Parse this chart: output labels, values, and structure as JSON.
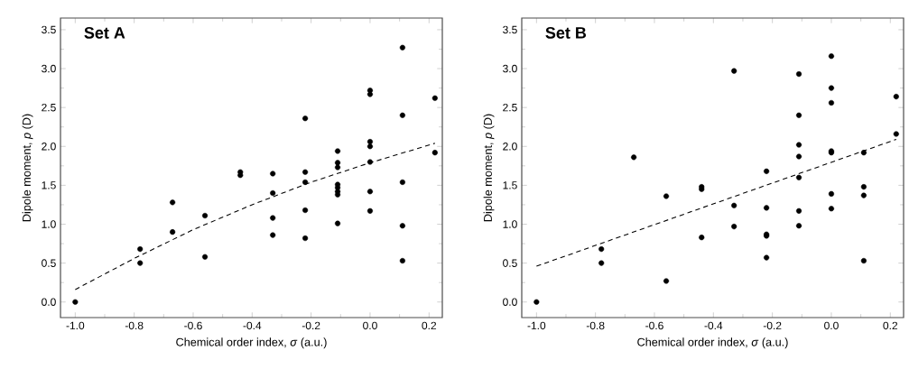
{
  "chart_data": [
    {
      "type": "scatter",
      "title": "Set A",
      "xlabel": "Chemical order index, *σ* (a.u.)",
      "ylabel": "Dipole moment, *p* (D)",
      "xlim": [
        -1.05,
        0.245
      ],
      "ylim": [
        -0.2,
        3.65
      ],
      "xticks": [
        {
          "value": -1,
          "label": "-1.0"
        },
        {
          "value": -0.8,
          "label": "-0.8"
        },
        {
          "value": -0.6,
          "label": "-0.6"
        },
        {
          "value": -0.4,
          "label": "-0.4"
        },
        {
          "value": -0.2,
          "label": "-0.2"
        },
        {
          "value": 0,
          "label": "0.0"
        },
        {
          "value": 0.2,
          "label": "0.2"
        }
      ],
      "yticks": [
        {
          "value": 0,
          "label": "0.0"
        },
        {
          "value": 0.5,
          "label": "0.5"
        },
        {
          "value": 1,
          "label": "1.0"
        },
        {
          "value": 1.5,
          "label": "1.5"
        },
        {
          "value": 2,
          "label": "2.0"
        },
        {
          "value": 2.5,
          "label": "2.5"
        },
        {
          "value": 3,
          "label": "3.0"
        },
        {
          "value": 3.5,
          "label": "3.5"
        }
      ],
      "marker": "circle",
      "grid": false,
      "series": [
        {
          "color": "#000000",
          "x": [
            -1,
            -0.78,
            -0.78,
            -0.67,
            -0.67,
            -0.56,
            -0.56,
            -0.44,
            -0.44,
            -0.33,
            -0.33,
            -0.33,
            -0.33,
            -0.22,
            -0.22,
            -0.22,
            -0.22,
            -0.22,
            -0.11,
            -0.11,
            -0.11,
            -0.11,
            -0.11,
            -0.11,
            -0.11,
            -0.11,
            0,
            0,
            0,
            0,
            0,
            0,
            0,
            0.11,
            0.11,
            0.11,
            0.11,
            0.11,
            0.22,
            0.22
          ],
          "values": [
            0,
            0.68,
            0.5,
            1.28,
            0.9,
            1.11,
            0.58,
            1.67,
            1.63,
            1.65,
            1.4,
            1.08,
            0.86,
            2.36,
            1.67,
            1.54,
            1.18,
            0.82,
            1.94,
            1.79,
            1.73,
            1.51,
            1.47,
            1.42,
            1.38,
            1.01,
            2.72,
            2.67,
            2.06,
            2.0,
            1.8,
            1.42,
            1.17,
            3.27,
            2.4,
            1.54,
            0.98,
            0.53,
            2.62,
            1.92
          ]
        },
        {
          "type": "line",
          "color": "#000000",
          "line_style": "dashed",
          "marker": "none",
          "x": [
            -1,
            -0.8,
            -0.6,
            -0.4,
            -0.2,
            0,
            0.22
          ],
          "values": [
            0.16,
            0.56,
            0.93,
            1.25,
            1.54,
            1.79,
            2.04
          ]
        }
      ]
    },
    {
      "type": "scatter",
      "title": "Set B",
      "xlabel": "Chemical order index, *σ* (a.u.)",
      "ylabel": "Dipole moment, *p* (D)",
      "xlim": [
        -1.05,
        0.245
      ],
      "ylim": [
        -0.2,
        3.65
      ],
      "xticks": [
        {
          "value": -1,
          "label": "-1.0"
        },
        {
          "value": -0.8,
          "label": "-0.8"
        },
        {
          "value": -0.6,
          "label": "-0.6"
        },
        {
          "value": -0.4,
          "label": "-0.4"
        },
        {
          "value": -0.2,
          "label": "-0.2"
        },
        {
          "value": 0,
          "label": "0.0"
        },
        {
          "value": 0.2,
          "label": "0.2"
        }
      ],
      "yticks": [
        {
          "value": 0,
          "label": "0.0"
        },
        {
          "value": 0.5,
          "label": "0.5"
        },
        {
          "value": 1,
          "label": "1.0"
        },
        {
          "value": 1.5,
          "label": "1.5"
        },
        {
          "value": 2,
          "label": "2.0"
        },
        {
          "value": 2.5,
          "label": "2.5"
        },
        {
          "value": 3,
          "label": "3.0"
        },
        {
          "value": 3.5,
          "label": "3.5"
        }
      ],
      "marker": "circle",
      "grid": false,
      "series": [
        {
          "color": "#000000",
          "x": [
            -1,
            -0.78,
            -0.78,
            -0.67,
            -0.56,
            -0.56,
            -0.44,
            -0.44,
            -0.44,
            -0.33,
            -0.33,
            -0.33,
            -0.22,
            -0.22,
            -0.22,
            -0.22,
            -0.22,
            -0.11,
            -0.11,
            -0.11,
            -0.11,
            -0.11,
            -0.11,
            -0.11,
            0,
            0,
            0,
            0,
            0,
            0,
            0,
            0.11,
            0.11,
            0.11,
            0.11,
            0.22,
            0.22
          ],
          "values": [
            0,
            0.68,
            0.5,
            1.86,
            1.36,
            0.27,
            1.48,
            1.45,
            0.83,
            2.97,
            1.24,
            0.97,
            1.68,
            1.21,
            0.87,
            0.85,
            0.57,
            2.93,
            2.4,
            2.02,
            1.87,
            1.6,
            1.17,
            0.98,
            3.16,
            2.75,
            2.56,
            1.94,
            1.92,
            1.39,
            1.2,
            1.92,
            1.48,
            1.37,
            0.53,
            2.64,
            2.16
          ]
        },
        {
          "type": "line",
          "color": "#000000",
          "line_style": "dashed",
          "marker": "none",
          "x": [
            -1,
            0.22
          ],
          "values": [
            0.46,
            2.09
          ]
        }
      ]
    }
  ]
}
